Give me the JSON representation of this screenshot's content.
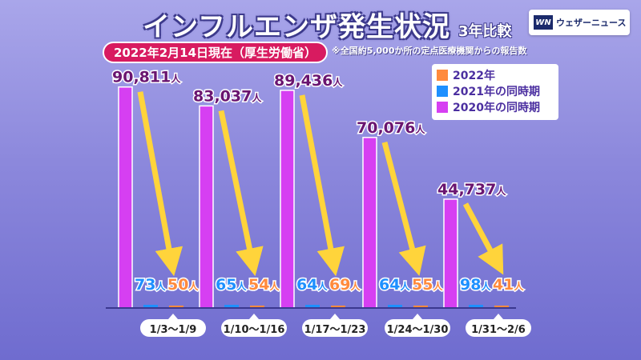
{
  "header": {
    "title": "インフルエンザ発生状況",
    "subtitle": "3年比較",
    "date_badge": "2022年2月14日現在（厚生労働省）",
    "note": "※全国約5,000か所の定点医療機関からの報告数"
  },
  "brand": {
    "logo": "WN",
    "name": "ウェザーニュース"
  },
  "colors": {
    "y2022": "#ff8a3d",
    "y2021": "#1e90ff",
    "y2020": "#d63ff2",
    "arrow": "#ffd43b"
  },
  "chart_data": {
    "type": "bar",
    "categories": [
      "1/3〜1/9",
      "1/10〜1/16",
      "1/17〜1/23",
      "1/24〜1/30",
      "1/31〜2/6"
    ],
    "series": [
      {
        "name": "2020年の同時期",
        "values": [
          90811,
          83037,
          89436,
          70076,
          44737
        ],
        "labels": [
          "90,811",
          "83,037",
          "89,436",
          "70,076",
          "44,737"
        ]
      },
      {
        "name": "2021年の同時期",
        "values": [
          73,
          65,
          64,
          64,
          98
        ],
        "labels": [
          "73",
          "65",
          "64",
          "64",
          "98"
        ]
      },
      {
        "name": "2022年",
        "values": [
          50,
          54,
          69,
          55,
          41
        ],
        "labels": [
          "50",
          "54",
          "69",
          "55",
          "41"
        ]
      }
    ],
    "unit": "人",
    "ylim": [
      0,
      95000
    ],
    "legend": {
      "position": "top-right"
    }
  }
}
